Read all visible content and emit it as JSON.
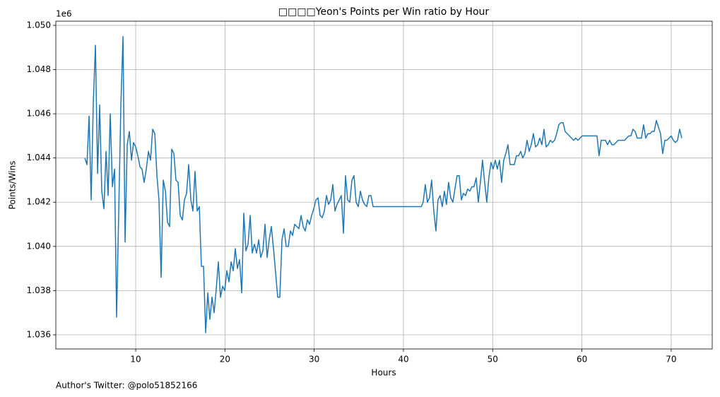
{
  "chart_data": {
    "type": "line",
    "title": "□□□□Yeon's Points per Win ratio by Hour",
    "x_label": "Hours",
    "y_label": "Points/Wins",
    "y_offset_label": "1e6",
    "footnote": "Author's Twitter: @polo51852166",
    "color": "#1f77b4",
    "grid": true,
    "xlim": [
      1.05,
      74.6
    ],
    "xticks": [
      10,
      20,
      30,
      40,
      50,
      60,
      70
    ],
    "ylim": [
      1035360,
      1050190
    ],
    "yticks": [
      {
        "value": 1036000,
        "label": "1.036"
      },
      {
        "value": 1038000,
        "label": "1.038"
      },
      {
        "value": 1040000,
        "label": "1.040"
      },
      {
        "value": 1042000,
        "label": "1.042"
      },
      {
        "value": 1044000,
        "label": "1.044"
      },
      {
        "value": 1046000,
        "label": "1.046"
      },
      {
        "value": 1048000,
        "label": "1.048"
      },
      {
        "value": 1050000,
        "label": "1.050"
      }
    ],
    "x": [
      4.3,
      4.54,
      4.78,
      5.01,
      5.25,
      5.49,
      5.73,
      5.96,
      6.2,
      6.44,
      6.68,
      6.91,
      7.15,
      7.39,
      7.63,
      7.86,
      8.1,
      8.34,
      8.58,
      8.81,
      9.05,
      9.29,
      9.53,
      9.76,
      10,
      10.24,
      10.48,
      10.71,
      10.95,
      11.19,
      11.43,
      11.66,
      11.9,
      12.14,
      12.38,
      12.61,
      12.85,
      13.09,
      13.33,
      13.56,
      13.8,
      14.04,
      14.28,
      14.51,
      14.75,
      14.99,
      15.23,
      15.46,
      15.7,
      15.94,
      16.18,
      16.41,
      16.65,
      16.89,
      17.13,
      17.36,
      17.6,
      17.84,
      18.08,
      18.31,
      18.55,
      18.79,
      19.03,
      19.26,
      19.5,
      19.74,
      19.98,
      20.21,
      20.45,
      20.69,
      20.93,
      21.16,
      21.4,
      21.64,
      21.88,
      22.11,
      22.35,
      22.59,
      22.83,
      23.06,
      23.3,
      23.54,
      23.78,
      24.01,
      24.25,
      24.49,
      24.73,
      24.96,
      25.2,
      25.44,
      25.68,
      25.91,
      26.15,
      26.39,
      26.63,
      26.86,
      27.1,
      27.34,
      27.58,
      27.81,
      28.05,
      28.29,
      28.53,
      28.76,
      29,
      29.24,
      29.48,
      29.71,
      29.95,
      30.19,
      30.43,
      30.66,
      30.9,
      31.14,
      31.38,
      31.61,
      31.85,
      32.09,
      32.33,
      32.56,
      32.8,
      33.04,
      33.28,
      33.51,
      33.75,
      33.99,
      34.23,
      34.46,
      34.7,
      34.94,
      35.18,
      35.41,
      35.65,
      35.89,
      36.13,
      36.36,
      36.6,
      42,
      42.21,
      42.45,
      42.69,
      42.92,
      43.16,
      43.4,
      43.64,
      43.87,
      44.11,
      44.35,
      44.59,
      44.82,
      45.06,
      45.3,
      45.54,
      45.77,
      46.01,
      46.25,
      46.49,
      46.72,
      46.96,
      47.2,
      47.44,
      47.67,
      47.91,
      48.15,
      48.39,
      48.62,
      48.86,
      49.1,
      49.34,
      49.57,
      49.81,
      50.05,
      50.29,
      50.52,
      50.76,
      51,
      51.24,
      51.47,
      51.71,
      51.95,
      52.19,
      52.42,
      52.66,
      52.9,
      53.14,
      53.37,
      53.61,
      53.85,
      54.09,
      54.32,
      54.56,
      54.8,
      55.04,
      55.27,
      55.51,
      55.75,
      55.99,
      56.22,
      56.46,
      56.7,
      56.94,
      57.17,
      57.41,
      57.65,
      57.89,
      58.12,
      58.36,
      58.6,
      58.84,
      59.07,
      59.31,
      59.55,
      59.79,
      60.02,
      61.69,
      61.92,
      62.16,
      62.4,
      62.64,
      62.87,
      63.11,
      63.35,
      63.59,
      63.82,
      64.06,
      64.3,
      64.54,
      64.77,
      65.01,
      65.25,
      65.49,
      65.72,
      65.96,
      66.2,
      66.44,
      66.67,
      66.91,
      67.15,
      67.39,
      67.62,
      67.86,
      68.1,
      68.34,
      68.57,
      68.81,
      69.05,
      69.29,
      69.52,
      69.76,
      70,
      70.24,
      70.47,
      70.71,
      70.95,
      71.19
    ],
    "values": [
      1044000,
      1043700,
      1045900,
      1042100,
      1046500,
      1049100,
      1043300,
      1046400,
      1042500,
      1041700,
      1044300,
      1042300,
      1046000,
      1042700,
      1043500,
      1036800,
      1041600,
      1046400,
      1049500,
      1040200,
      1044600,
      1045200,
      1043900,
      1044700,
      1044500,
      1044100,
      1043600,
      1043500,
      1042900,
      1043500,
      1044300,
      1043900,
      1045300,
      1045100,
      1043200,
      1042100,
      1038600,
      1043000,
      1042500,
      1041100,
      1040900,
      1044400,
      1044200,
      1043000,
      1042900,
      1041400,
      1041200,
      1042100,
      1042400,
      1043700,
      1042100,
      1041600,
      1043400,
      1041600,
      1041800,
      1039100,
      1039100,
      1036100,
      1037900,
      1036700,
      1037700,
      1037000,
      1038100,
      1039300,
      1037700,
      1038200,
      1038000,
      1038900,
      1038400,
      1039300,
      1038900,
      1039900,
      1039000,
      1039400,
      1037900,
      1041500,
      1039800,
      1040100,
      1041400,
      1039700,
      1040100,
      1039700,
      1040300,
      1039500,
      1039800,
      1041000,
      1039500,
      1040300,
      1040900,
      1039900,
      1038800,
      1037700,
      1037700,
      1040300,
      1040800,
      1040000,
      1040000,
      1040700,
      1040500,
      1041000,
      1040900,
      1040800,
      1041400,
      1040900,
      1040700,
      1041200,
      1041000,
      1041400,
      1041700,
      1042100,
      1042200,
      1041400,
      1041300,
      1041600,
      1042300,
      1041900,
      1042100,
      1042800,
      1041600,
      1041900,
      1042100,
      1042300,
      1040600,
      1043200,
      1042100,
      1042000,
      1043000,
      1043200,
      1042000,
      1041800,
      1042500,
      1042100,
      1041900,
      1041800,
      1042300,
      1042300,
      1041800,
      1041800,
      1042000,
      1042800,
      1042000,
      1042200,
      1043000,
      1041600,
      1040700,
      1042100,
      1042300,
      1041800,
      1042500,
      1041900,
      1042900,
      1042200,
      1042000,
      1042600,
      1043200,
      1043200,
      1042100,
      1042400,
      1042300,
      1042600,
      1042500,
      1042700,
      1042700,
      1043100,
      1042000,
      1042900,
      1043900,
      1042900,
      1042000,
      1043100,
      1043800,
      1043500,
      1043900,
      1043500,
      1043900,
      1042900,
      1043900,
      1044200,
      1044600,
      1043700,
      1043700,
      1043700,
      1044100,
      1044100,
      1044300,
      1044000,
      1044200,
      1044800,
      1044300,
      1044600,
      1045100,
      1044500,
      1044600,
      1044900,
      1044600,
      1045300,
      1044500,
      1044600,
      1044800,
      1044700,
      1044800,
      1045100,
      1045500,
      1045600,
      1045600,
      1045200,
      1045100,
      1045000,
      1044900,
      1044800,
      1044900,
      1044800,
      1044900,
      1045000,
      1045000,
      1044100,
      1044800,
      1044800,
      1044800,
      1044600,
      1044800,
      1044600,
      1044600,
      1044700,
      1044800,
      1044800,
      1044800,
      1044800,
      1044900,
      1045000,
      1045000,
      1045300,
      1045200,
      1044900,
      1044900,
      1044900,
      1045500,
      1044900,
      1045100,
      1045100,
      1045200,
      1045200,
      1045700,
      1045400,
      1045100,
      1044200,
      1044800,
      1044800,
      1044900,
      1045000,
      1044800,
      1044700,
      1044800,
      1045300,
      1044900
    ]
  }
}
